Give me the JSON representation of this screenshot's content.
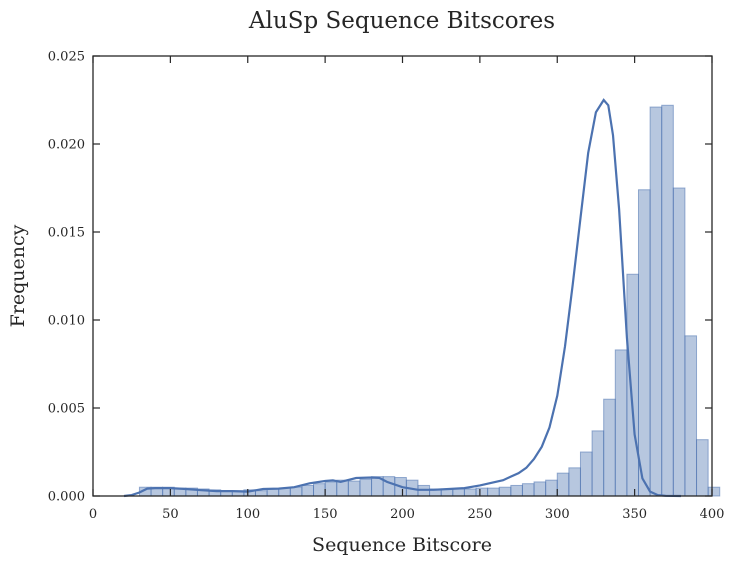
{
  "chart_data": {
    "type": "bar",
    "title": "AluSp Sequence Bitscores",
    "xlabel": "Sequence Bitscore",
    "ylabel": "Frequency",
    "xlim": [
      0,
      400
    ],
    "ylim": [
      0,
      0.025
    ],
    "x_ticks": [
      0,
      50,
      100,
      150,
      200,
      250,
      300,
      350,
      400
    ],
    "x_tick_labels": [
      "0",
      "50",
      "100",
      "150",
      "200",
      "250",
      "300",
      "350",
      "400"
    ],
    "y_ticks": [
      0.0,
      0.005,
      0.01,
      0.015,
      0.02,
      0.025
    ],
    "y_tick_labels": [
      "0.000",
      "0.005",
      "0.010",
      "0.015",
      "0.020",
      "0.025"
    ],
    "grid": false,
    "bar_color": "#4c72b0",
    "bar_alpha": 0.4,
    "line_color": "#4c72b0",
    "histogram": {
      "bin_width": 7.5,
      "bin_start": 30,
      "values": [
        0.0005,
        0.0005,
        0.0005,
        0.00045,
        0.00045,
        0.0004,
        0.00035,
        0.0003,
        0.0003,
        0.00035,
        0.0003,
        0.0004,
        0.00045,
        0.0005,
        0.0006,
        0.0007,
        0.0008,
        0.0009,
        0.00085,
        0.00095,
        0.0011,
        0.0011,
        0.00105,
        0.0009,
        0.0006,
        0.0004,
        0.0004,
        0.0004,
        0.0004,
        0.00045,
        0.00045,
        0.0005,
        0.0006,
        0.0007,
        0.0008,
        0.0009,
        0.0013,
        0.0016,
        0.0025,
        0.0037,
        0.0055,
        0.0083,
        0.0126,
        0.0174,
        0.0221,
        0.0222,
        0.0175,
        0.0091,
        0.0032,
        0.0005
      ]
    },
    "kde": {
      "x": [
        20,
        25,
        30,
        35,
        40,
        50,
        60,
        70,
        80,
        90,
        100,
        110,
        120,
        130,
        140,
        150,
        155,
        160,
        170,
        180,
        185,
        190,
        200,
        210,
        220,
        230,
        240,
        250,
        260,
        265,
        270,
        275,
        280,
        285,
        290,
        295,
        300,
        305,
        310,
        315,
        320,
        325,
        330,
        333,
        336,
        340,
        345,
        350,
        355,
        360,
        365,
        370,
        380
      ],
      "y": [
        0.0,
        5e-05,
        0.0002,
        0.00042,
        0.00045,
        0.00045,
        0.0004,
        0.00033,
        0.00028,
        0.00028,
        0.00025,
        0.0004,
        0.00042,
        0.0005,
        0.00072,
        0.00085,
        0.00089,
        0.0008,
        0.00102,
        0.00105,
        0.00103,
        0.0008,
        0.0005,
        0.00035,
        0.00035,
        0.0004,
        0.00045,
        0.0006,
        0.0008,
        0.0009,
        0.0011,
        0.0013,
        0.0016,
        0.0021,
        0.0028,
        0.0039,
        0.0057,
        0.0085,
        0.012,
        0.0158,
        0.0195,
        0.0218,
        0.0225,
        0.0222,
        0.0205,
        0.0163,
        0.009,
        0.0035,
        0.001,
        0.00025,
        5e-05,
        1e-05,
        0.0
      ]
    }
  }
}
